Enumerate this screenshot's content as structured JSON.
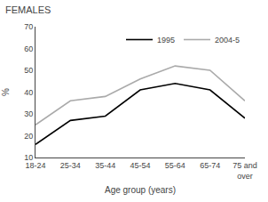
{
  "chart_data": {
    "type": "line",
    "title": "FEMALES",
    "xlabel": "Age group (years)",
    "ylabel": "%",
    "categories": [
      "18-24",
      "25-34",
      "35-44",
      "45-54",
      "55-64",
      "65-74",
      "75 and\nover"
    ],
    "series": [
      {
        "name": "1995",
        "color": "#000000",
        "values": [
          16,
          27,
          29,
          41,
          44,
          41,
          28
        ]
      },
      {
        "name": "2004-5",
        "color": "#aaaaaa",
        "values": [
          25,
          36,
          38,
          46,
          52,
          50,
          36
        ]
      }
    ],
    "ylim": [
      10,
      70
    ],
    "yticks": [
      10,
      20,
      30,
      40,
      50,
      60,
      70
    ],
    "grid": false,
    "legend": "upper right"
  }
}
